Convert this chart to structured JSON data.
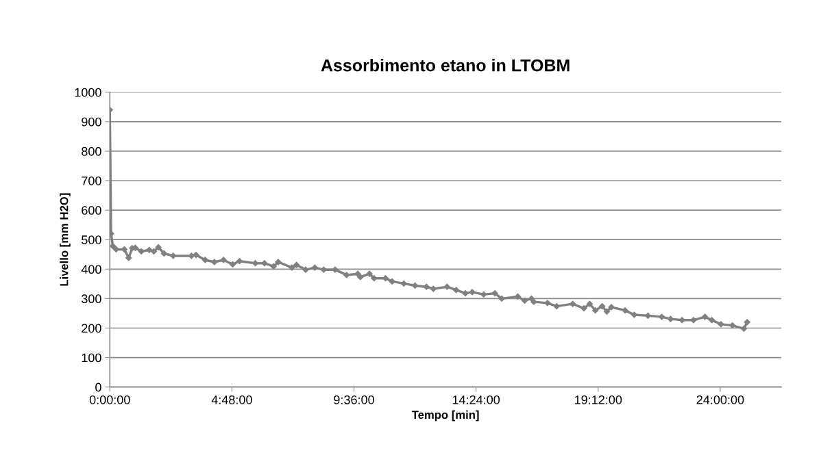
{
  "chart_data": {
    "type": "line",
    "title": "Assorbimento etano in LTOBM",
    "xlabel": "Tempo [min]",
    "ylabel": "Livello [mm H2O]",
    "x": [
      0,
      0.05,
      0.12,
      0.25,
      0.57,
      0.74,
      0.88,
      1.0,
      1.24,
      1.55,
      1.73,
      1.91,
      2.13,
      2.49,
      3.21,
      3.39,
      3.75,
      4.11,
      4.47,
      4.83,
      5.1,
      5.72,
      6.08,
      6.44,
      6.62,
      7.16,
      7.34,
      7.7,
      8.06,
      8.41,
      8.86,
      9.31,
      9.75,
      9.85,
      10.21,
      10.39,
      10.84,
      11.1,
      11.56,
      12.0,
      12.45,
      12.72,
      13.26,
      13.62,
      13.98,
      14.25,
      14.7,
      15.14,
      15.41,
      16.04,
      16.31,
      16.58,
      16.67,
      17.21,
      17.57,
      18.2,
      18.64,
      18.87,
      19.09,
      19.36,
      19.54,
      19.72,
      20.26,
      20.62,
      21.16,
      21.7,
      22.05,
      22.5,
      22.95,
      23.4,
      23.67,
      24.03,
      24.48,
      24.93,
      25.06
    ],
    "series": [
      {
        "color": "#808080",
        "values": [
          940,
          520,
          478,
          467,
          467,
          438,
          471,
          472,
          460,
          465,
          460,
          474,
          453,
          445,
          445,
          448,
          431,
          424,
          431,
          416,
          427,
          420,
          420,
          409,
          424,
          405,
          414,
          398,
          405,
          398,
          398,
          380,
          384,
          373,
          384,
          369,
          369,
          358,
          351,
          344,
          340,
          333,
          340,
          329,
          318,
          322,
          314,
          318,
          300,
          307,
          293,
          300,
          289,
          285,
          274,
          282,
          267,
          282,
          260,
          274,
          256,
          271,
          260,
          245,
          242,
          238,
          231,
          227,
          227,
          238,
          227,
          213,
          209,
          198,
          220
        ]
      }
    ],
    "xlim": [
      0,
      26.4
    ],
    "xticks": [
      {
        "value": 0,
        "label": "0:00:00"
      },
      {
        "value": 4.8,
        "label": "4:48:00"
      },
      {
        "value": 9.6,
        "label": "9:36:00"
      },
      {
        "value": 14.4,
        "label": "14:24:00"
      },
      {
        "value": 19.2,
        "label": "19:12:00"
      },
      {
        "value": 24,
        "label": "24:00:00"
      }
    ],
    "ylim": [
      0,
      1000
    ],
    "yticks": [
      0,
      100,
      200,
      300,
      400,
      500,
      600,
      700,
      800,
      900,
      1000
    ],
    "grid": "y",
    "marker": "diamond",
    "line_style": "solid",
    "legend": false
  }
}
